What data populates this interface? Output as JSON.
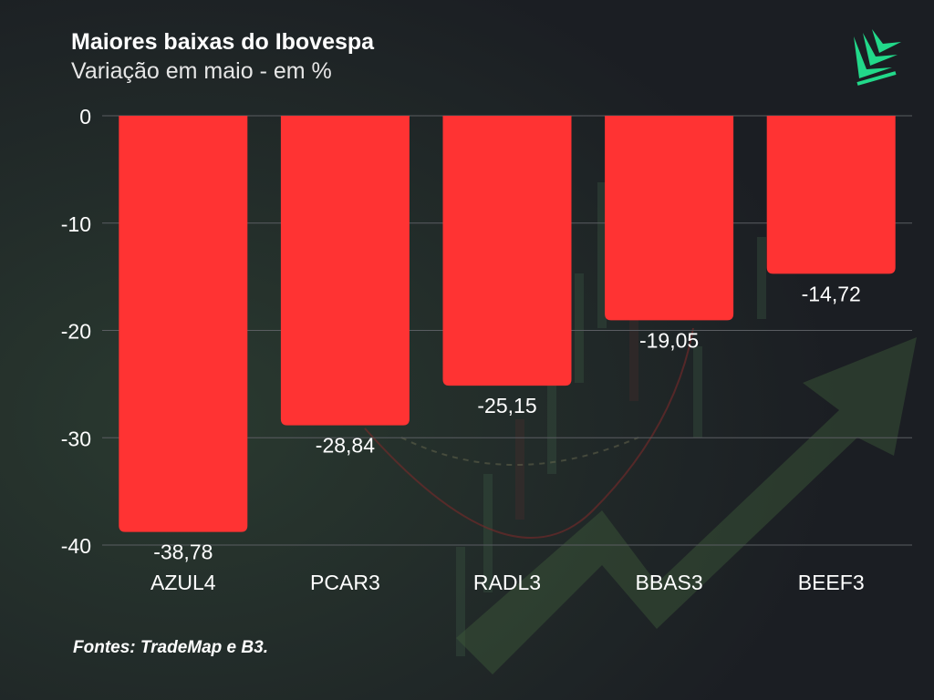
{
  "header": {
    "title": "Maiores baixas do Ibovespa",
    "subtitle": "Variação em maio - em %"
  },
  "footer": {
    "source": "Fontes: TradeMap e B3."
  },
  "colors": {
    "background": "#1b1e23",
    "bar": "#ff3333",
    "text": "#ffffff",
    "gridline": "#5a5d62",
    "logo": "#22d98a"
  },
  "logo": {
    "icon": "leaf-logo-icon"
  },
  "chart_data": {
    "type": "bar",
    "categories": [
      "AZUL4",
      "PCAR3",
      "RADL3",
      "BBAS3",
      "BEEF3"
    ],
    "values": [
      -38.78,
      -28.84,
      -25.15,
      -19.05,
      -14.72
    ],
    "value_labels": [
      "-38,78",
      "-28,84",
      "-25,15",
      "-19,05",
      "-14,72"
    ],
    "title": "Maiores baixas do Ibovespa",
    "subtitle": "Variação em maio - em %",
    "ylim": [
      -40,
      0
    ],
    "yticks": [
      0,
      -10,
      -20,
      -30,
      -40
    ],
    "grid": true
  }
}
